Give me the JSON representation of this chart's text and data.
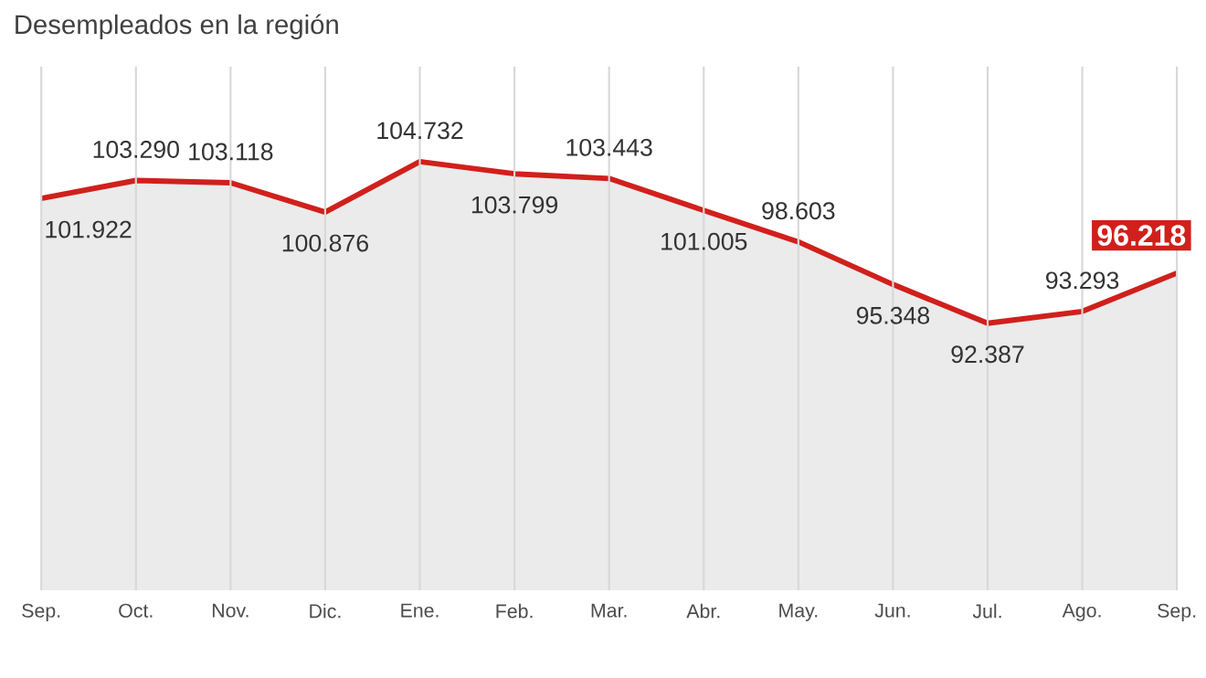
{
  "chart_data": {
    "type": "area",
    "title": "Desempleados en la región",
    "categories": [
      "Sep.",
      "Oct.",
      "Nov.",
      "Dic.",
      "Ene.",
      "Feb.",
      "Mar.",
      "Abr.",
      "May.",
      "Jun.",
      "Jul.",
      "Ago.",
      "Sep."
    ],
    "series": [
      {
        "color": "#d0201c",
        "values": [
          101922,
          103290,
          103118,
          100876,
          104732,
          103799,
          103443,
          101005,
          98603,
          95348,
          92387,
          93293,
          96218
        ],
        "value_labels": [
          "101.922",
          "103.290",
          "103.118",
          "100.876",
          "104.732",
          "103.799",
          "103.443",
          "101.005",
          "98.603",
          "95.348",
          "92.387",
          "93.293",
          "96.218"
        ]
      }
    ],
    "ylim": [
      72000,
      112000
    ],
    "grid": "x",
    "tick_labels": "x",
    "marker": "none"
  }
}
